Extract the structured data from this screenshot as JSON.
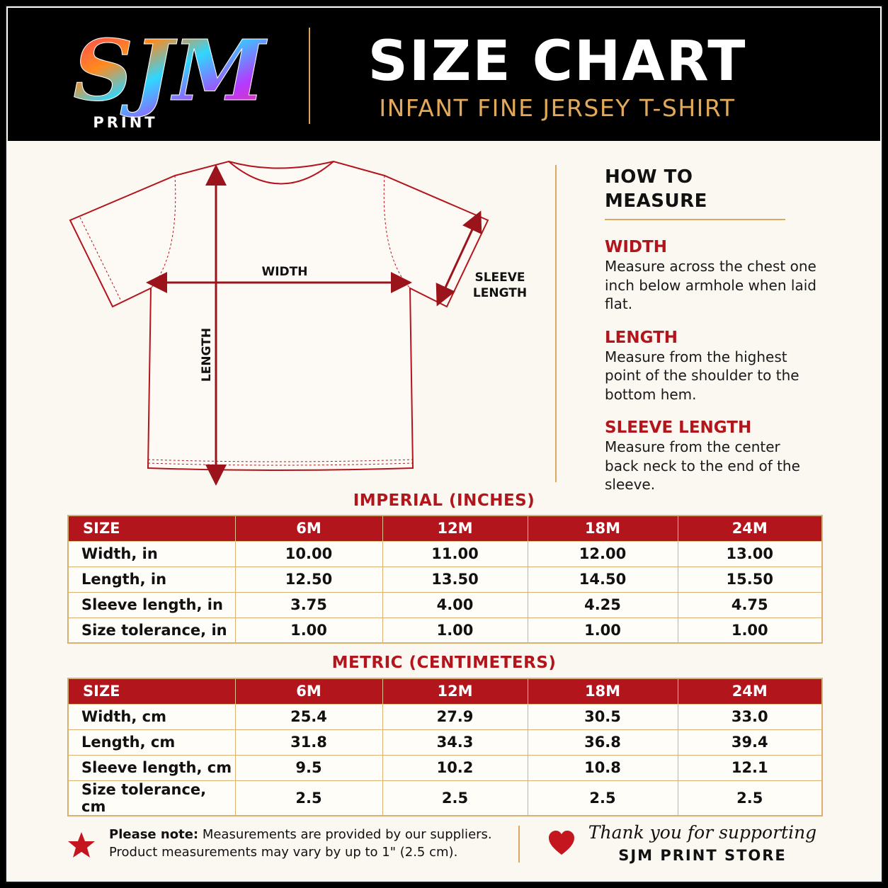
{
  "header": {
    "logo_text": "SJM",
    "logo_sub": "PRINT",
    "title": "SIZE CHART",
    "subtitle": "INFANT FINE JERSEY T-SHIRT"
  },
  "diagram": {
    "width_label": "WIDTH",
    "length_label": "LENGTH",
    "sleeve_label_1": "SLEEVE",
    "sleeve_label_2": "LENGTH",
    "icon": "t-shirt-icon"
  },
  "how_to_measure": {
    "title": "HOW TO MEASURE",
    "items": [
      {
        "heading": "WIDTH",
        "text": "Measure across the chest one inch below armhole when laid flat."
      },
      {
        "heading": "LENGTH",
        "text": "Measure from the highest point of the shoulder to the bottom hem."
      },
      {
        "heading": "SLEEVE LENGTH",
        "text": "Measure from the center back neck to the end of the sleeve."
      }
    ]
  },
  "imperial": {
    "title": "IMPERIAL (INCHES)",
    "headers": [
      "SIZE",
      "6M",
      "12M",
      "18M",
      "24M"
    ],
    "rows": [
      [
        "Width, in",
        "10.00",
        "11.00",
        "12.00",
        "13.00"
      ],
      [
        "Length, in",
        "12.50",
        "13.50",
        "14.50",
        "15.50"
      ],
      [
        "Sleeve length, in",
        "3.75",
        "4.00",
        "4.25",
        "4.75"
      ],
      [
        "Size tolerance, in",
        "1.00",
        "1.00",
        "1.00",
        "1.00"
      ]
    ]
  },
  "metric": {
    "title": "METRIC (CENTIMETERS)",
    "headers": [
      "SIZE",
      "6M",
      "12M",
      "18M",
      "24M"
    ],
    "rows": [
      [
        "Width, cm",
        "25.4",
        "27.9",
        "30.5",
        "33.0"
      ],
      [
        "Length, cm",
        "31.8",
        "34.3",
        "36.8",
        "39.4"
      ],
      [
        "Sleeve length, cm",
        "9.5",
        "10.2",
        "10.8",
        "12.1"
      ],
      [
        "Size tolerance, cm",
        "2.5",
        "2.5",
        "2.5",
        "2.5"
      ]
    ]
  },
  "footer": {
    "note_bold": "Please note:",
    "note_line1": " Measurements are provided by our suppliers.",
    "note_line2": "Product measurements may vary by up to 1\" (2.5 cm).",
    "thanks": "Thank you for supporting",
    "store": "SJM PRINT STORE"
  },
  "colors": {
    "accent_red": "#b3151d",
    "gold": "#d9a863",
    "background": "#fbf7f1"
  }
}
